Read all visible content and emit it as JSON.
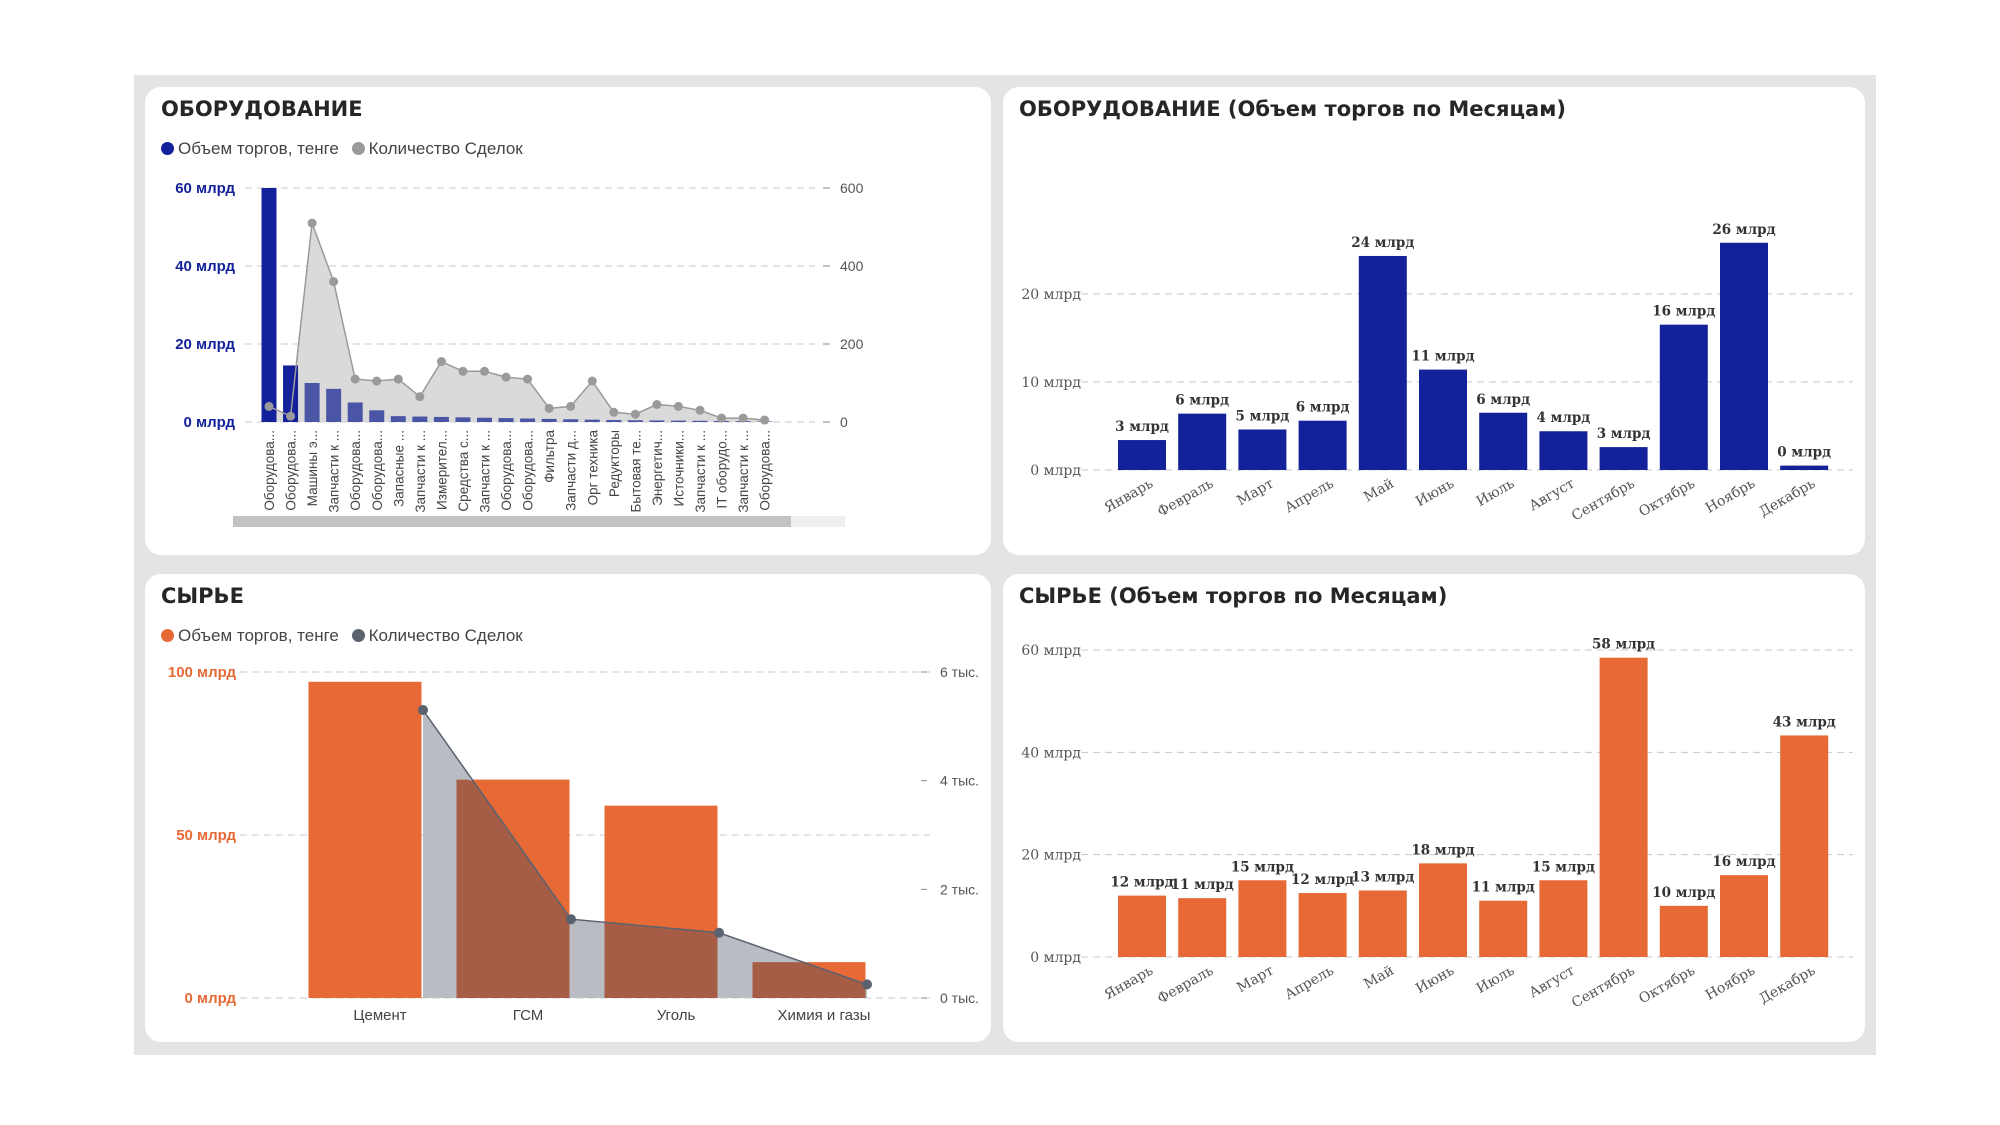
{
  "panels": {
    "equip": {
      "title": "ОБОРУДОВАНИЕ",
      "legend": {
        "volume": "Объем торгов, тенге",
        "count": "Количество Сделок"
      },
      "colors": {
        "bar": "#13229a",
        "bar_light": "#4a55a6",
        "line": "#9a9a9a",
        "area": "#d6d6d6",
        "axis_left": "#13229a"
      }
    },
    "equip_month": {
      "title": "ОБОРУДОВАНИЕ (Объем торгов по Месяцам)",
      "colors": {
        "bar": "#13229a"
      }
    },
    "raw": {
      "title": "СЫРЬЕ",
      "legend": {
        "volume": "Объем торгов, тенге",
        "count": "Количество Сделок"
      },
      "colors": {
        "bar": "#e76a36",
        "line": "#5a6270",
        "area": "#b9bcc2",
        "overlap": "#a65d46",
        "axis_left": "#e76a36"
      }
    },
    "raw_month": {
      "title": "СЫРЬЕ (Объем торгов по Месяцам)",
      "colors": {
        "bar": "#e76a36"
      }
    }
  },
  "chart_data": [
    {
      "id": "equip",
      "type": "bar",
      "title": "ОБОРУДОВАНИЕ",
      "categories": [
        "Оборудова...",
        "Оборудова...",
        "Машины э...",
        "Запчасти к ...",
        "Оборудова...",
        "Оборудова...",
        "Запасные ...",
        "Запчасти к ...",
        "Измерител...",
        "Средства с...",
        "Запчасти к ...",
        "Оборудова...",
        "Оборудова...",
        "Фильтра",
        "Запчасти д...",
        "Орг техника",
        "Редукторы",
        "Бытовая те...",
        "Энергетич...",
        "Источники...",
        "Запчасти к ...",
        "IT оборудо...",
        "Запчасти к ...",
        "Оборудова..."
      ],
      "series": [
        {
          "name": "Объем торгов, тенге",
          "axis": "left",
          "values": [
            60,
            14.5,
            10,
            8.5,
            5,
            3,
            1.5,
            1.4,
            1.3,
            1.2,
            1.1,
            1.0,
            0.9,
            0.8,
            0.7,
            0.6,
            0.5,
            0.45,
            0.4,
            0.35,
            0.3,
            0.25,
            0.2,
            0.15
          ]
        },
        {
          "name": "Количество Сделок",
          "axis": "right",
          "values": [
            40,
            15,
            510,
            360,
            110,
            105,
            110,
            65,
            155,
            130,
            130,
            115,
            110,
            35,
            40,
            105,
            25,
            20,
            45,
            40,
            30,
            10,
            10,
            5
          ]
        }
      ],
      "y_left": {
        "ticks": [
          "0 млрд",
          "20 млрд",
          "40 млрд",
          "60 млрд"
        ],
        "range": [
          0,
          60
        ]
      },
      "y_right": {
        "ticks": [
          "0",
          "200",
          "400",
          "600"
        ],
        "range": [
          0,
          600
        ]
      }
    },
    {
      "id": "equip_month",
      "type": "bar",
      "title": "ОБОРУДОВАНИЕ (Объем торгов по Месяцам)",
      "categories": [
        "Январь",
        "Февраль",
        "Март",
        "Апрель",
        "Май",
        "Июнь",
        "Июль",
        "Август",
        "Сентябрь",
        "Октябрь",
        "Ноябрь",
        "Декабрь"
      ],
      "values": [
        3.4,
        6.4,
        4.6,
        5.6,
        24.3,
        11.4,
        6.5,
        4.4,
        2.6,
        16.5,
        25.8,
        0.5
      ],
      "labels": [
        "3 млрд",
        "6 млрд",
        "5 млрд",
        "6 млрд",
        "24 млрд",
        "11 млрд",
        "6 млрд",
        "4 млрд",
        "3 млрд",
        "16 млрд",
        "26 млрд",
        "0 млрд"
      ],
      "y_ticks": [
        "0 млрд",
        "10 млрд",
        "20 млрд"
      ],
      "ylim": [
        0,
        26
      ]
    },
    {
      "id": "raw",
      "type": "bar",
      "title": "СЫРЬЕ",
      "categories": [
        "Цемент",
        "ГСМ",
        "Уголь",
        "Химия и газы"
      ],
      "series": [
        {
          "name": "Объем торгов, тенге",
          "axis": "left",
          "values": [
            97,
            67,
            59,
            11
          ]
        },
        {
          "name": "Количество Сделок",
          "axis": "right",
          "values": [
            5300,
            1450,
            1200,
            250
          ]
        }
      ],
      "y_left": {
        "ticks": [
          "0 млрд",
          "50 млрд",
          "100 млрд"
        ],
        "range": [
          0,
          100
        ]
      },
      "y_right": {
        "ticks": [
          "0 тыс.",
          "2 тыс.",
          "4 тыс.",
          "6 тыс."
        ],
        "range": [
          0,
          6000
        ]
      }
    },
    {
      "id": "raw_month",
      "type": "bar",
      "title": "СЫРЬЕ (Объем торгов по Месяцам)",
      "categories": [
        "Январь",
        "Февраль",
        "Март",
        "Апрель",
        "Май",
        "Июнь",
        "Июль",
        "Август",
        "Сентябрь",
        "Октябрь",
        "Ноябрь",
        "Декабрь"
      ],
      "values": [
        12,
        11.5,
        15,
        12.5,
        13,
        18.3,
        11,
        15,
        58.5,
        10,
        16,
        43.3
      ],
      "labels": [
        "12 млрд",
        "11 млрд",
        "15 млрд",
        "12 млрд",
        "13 млрд",
        "18 млрд",
        "11 млрд",
        "15 млрд",
        "58 млрд",
        "10 млрд",
        "16 млрд",
        "43 млрд"
      ],
      "y_ticks": [
        "0 млрд",
        "20 млрд",
        "40 млрд",
        "60 млрд"
      ],
      "ylim": [
        0,
        60
      ]
    }
  ]
}
